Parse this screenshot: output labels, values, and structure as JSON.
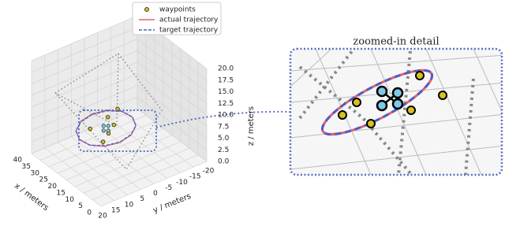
{
  "chart_data": {
    "type": "line3d",
    "xlabel": "x / meters",
    "ylabel": "y / meters",
    "zlabel": "z / meters",
    "xlim": [
      0,
      40
    ],
    "xticks": [
      0,
      5,
      10,
      15,
      20,
      25,
      30,
      35,
      40
    ],
    "ylim": [
      -20,
      20
    ],
    "yticks": [
      -20,
      -15,
      -10,
      -5,
      0,
      5,
      10,
      15,
      20
    ],
    "zlim": [
      0,
      20
    ],
    "zticks": [
      {
        "value": 0,
        "label": "0.0"
      },
      {
        "value": 2.5,
        "label": "2.5"
      },
      {
        "value": 5,
        "label": "5.0"
      },
      {
        "value": 7.5,
        "label": "7.5"
      },
      {
        "value": 10,
        "label": "10.0"
      },
      {
        "value": 12.5,
        "label": "12.5"
      },
      {
        "value": 15,
        "label": "15.0"
      },
      {
        "value": 17.5,
        "label": "17.5"
      },
      {
        "value": 20,
        "label": "20.0"
      }
    ],
    "grid": true,
    "inset_title": "zoomed-in detail",
    "series": [
      {
        "name": "waypoints",
        "kind": "points",
        "color": "#d8c020",
        "x": [
          14,
          17,
          20,
          23,
          25,
          27
        ],
        "y": [
          10,
          6,
          2,
          9,
          1,
          -4
        ],
        "z": [
          7.5,
          7.5,
          7.5,
          7.5,
          7.5,
          7.5
        ]
      },
      {
        "name": "actual trajectory",
        "kind": "line",
        "linestyle": "solid",
        "color": "#e8606a",
        "x": [
          28,
          26.9,
          24,
          20,
          16,
          13.1,
          12,
          13.1,
          16,
          20,
          24,
          26.9,
          28
        ],
        "y": [
          5,
          10,
          13.7,
          15,
          13.7,
          10,
          5,
          0,
          -3.7,
          -5,
          -3.7,
          0,
          5
        ],
        "z": [
          8.3,
          8.2,
          7.9,
          7.5,
          7.1,
          6.8,
          6.7,
          6.8,
          7.1,
          7.5,
          7.9,
          8.2,
          8.3
        ]
      },
      {
        "name": "target trajectory",
        "kind": "line",
        "linestyle": "dashed",
        "color": "#4a5fc8",
        "x": [
          28,
          26.9,
          24,
          20,
          16,
          13.1,
          12,
          13.1,
          16,
          20,
          24,
          26.9,
          28
        ],
        "y": [
          5,
          10,
          13.7,
          15,
          13.7,
          10,
          5,
          0,
          -3.7,
          -5,
          -3.7,
          0,
          5
        ],
        "z": [
          8.2,
          8.1,
          7.9,
          7.5,
          7.1,
          6.9,
          6.8,
          6.9,
          7.1,
          7.5,
          7.9,
          8.1,
          8.2
        ]
      }
    ]
  }
}
